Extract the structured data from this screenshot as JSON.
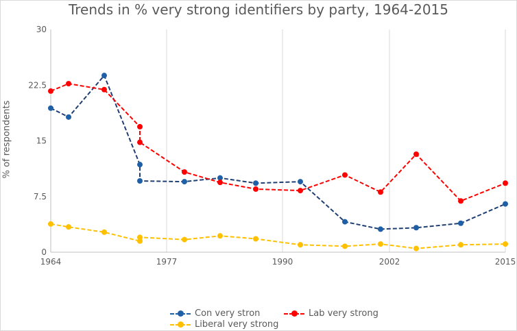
{
  "chart_data": {
    "type": "line",
    "title": "Trends in % very strong identifiers by party, 1964-2015",
    "xlabel": "",
    "ylabel": "% of respondents",
    "xlim": [
      1964,
      2015
    ],
    "ylim": [
      0,
      30
    ],
    "x_ticks": [
      "1964",
      "1977",
      "1990",
      "2002",
      "2015"
    ],
    "y_ticks": [
      "0",
      "7.5",
      "15",
      "22.5",
      "30"
    ],
    "grid": "vertical",
    "legend_position": "bottom",
    "series": [
      {
        "name": "Con very stron",
        "color": "#1f5fa6",
        "line_color": "#1f3f73",
        "x": [
          1964,
          1966,
          1970,
          1974,
          1974,
          1979,
          1983,
          1987,
          1992,
          1997,
          2001,
          2005,
          2010,
          2015
        ],
        "values": [
          19.4,
          18.2,
          23.8,
          11.8,
          9.6,
          9.5,
          10.0,
          9.3,
          9.5,
          4.1,
          3.1,
          3.3,
          3.9,
          6.5
        ]
      },
      {
        "name": "Lab very strong",
        "color": "#ff0000",
        "line_color": "#ff0000",
        "x": [
          1964,
          1966,
          1970,
          1974,
          1974,
          1979,
          1983,
          1987,
          1992,
          1997,
          2001,
          2005,
          2010,
          2015
        ],
        "values": [
          21.7,
          22.7,
          21.9,
          16.9,
          14.8,
          10.8,
          9.4,
          8.5,
          8.3,
          10.4,
          8.1,
          13.2,
          6.9,
          9.3
        ]
      },
      {
        "name": "Liberal very strong",
        "color": "#ffc000",
        "line_color": "#ffc000",
        "x": [
          1964,
          1966,
          1970,
          1974,
          1974,
          1979,
          1983,
          1987,
          1992,
          1997,
          2001,
          2005,
          2010,
          2015
        ],
        "values": [
          3.8,
          3.4,
          2.7,
          1.5,
          2.0,
          1.7,
          2.2,
          1.8,
          1.0,
          0.8,
          1.1,
          0.5,
          1.0,
          1.1
        ]
      }
    ]
  }
}
